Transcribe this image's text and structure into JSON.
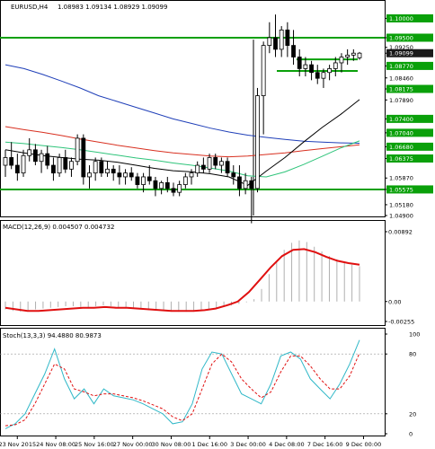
{
  "header": {
    "symbol": "EURUSD,H4",
    "ohlc": "1.08983 1.09134 1.08929 1.09099"
  },
  "colors": {
    "up_candle": "#ffffff",
    "down_candle": "#000000",
    "ma_slow": "#1f3fb8",
    "ma_mid": "#d83020",
    "ma_fast": "#2ec47a",
    "ma_black": "#000000",
    "level_lines": "#0aa00a",
    "macd_signal": "#e01010",
    "macd_hist": "#b0b0b0",
    "stoch_main": "#30b8c8",
    "stoch_signal": "#e01010",
    "price_box": "#0aa00a"
  },
  "chart_data": [
    {
      "type": "candlestick",
      "title": "EURUSD,H4",
      "ohlc_label": "1.08983 1.09134 1.08929 1.09099",
      "ylim": [
        1.049,
        1.1015
      ],
      "y_ticks": [
        {
          "v": 1.1,
          "label": "1.10000",
          "box": true
        },
        {
          "v": 1.095,
          "label": "1.09500",
          "box": true
        },
        {
          "v": 1.0925,
          "label": "1.09250",
          "box": false
        },
        {
          "v": 1.09099,
          "label": "1.09099",
          "box": true,
          "dark": true
        },
        {
          "v": 1.0877,
          "label": "1.08770",
          "box": true
        },
        {
          "v": 1.0846,
          "label": "1.08460",
          "box": false
        },
        {
          "v": 1.08175,
          "label": "1.08175",
          "box": true
        },
        {
          "v": 1.0789,
          "label": "1.07890",
          "box": false
        },
        {
          "v": 1.074,
          "label": "1.07400",
          "box": true
        },
        {
          "v": 1.0704,
          "label": "1.07040",
          "box": true
        },
        {
          "v": 1.0668,
          "label": "1.06680",
          "box": true
        },
        {
          "v": 1.06375,
          "label": "1.06375",
          "box": true
        },
        {
          "v": 1.0587,
          "label": "1.05870",
          "box": false
        },
        {
          "v": 1.05575,
          "label": "1.05575",
          "box": true
        },
        {
          "v": 1.0518,
          "label": "1.05180",
          "box": false
        },
        {
          "v": 1.049,
          "label": "1.04900",
          "box": false
        }
      ],
      "levels": [
        {
          "v": 1.095,
          "x0": 0,
          "x1": 428
        },
        {
          "v": 1.05575,
          "x0": 0,
          "x1": 428
        },
        {
          "v": 1.0894,
          "x0": 330,
          "x1": 398
        },
        {
          "v": 1.0864,
          "x0": 308,
          "x1": 398
        }
      ],
      "candles": [
        [
          1.062,
          1.066,
          1.059,
          1.064
        ],
        [
          1.064,
          1.068,
          1.061,
          1.062
        ],
        [
          1.062,
          1.065,
          1.058,
          1.06
        ],
        [
          1.06,
          1.066,
          1.059,
          1.0645
        ],
        [
          1.0645,
          1.069,
          1.063,
          1.066
        ],
        [
          1.066,
          1.0675,
          1.062,
          1.063
        ],
        [
          1.063,
          1.066,
          1.06,
          1.065
        ],
        [
          1.065,
          1.067,
          1.061,
          1.062
        ],
        [
          1.062,
          1.064,
          1.058,
          1.06
        ],
        [
          1.06,
          1.065,
          1.059,
          1.064
        ],
        [
          1.064,
          1.066,
          1.06,
          1.061
        ],
        [
          1.061,
          1.064,
          1.059,
          1.063
        ],
        [
          1.063,
          1.07,
          1.062,
          1.069
        ],
        [
          1.069,
          1.07,
          1.057,
          1.059
        ],
        [
          1.059,
          1.062,
          1.056,
          1.06
        ],
        [
          1.06,
          1.064,
          1.058,
          1.063
        ],
        [
          1.063,
          1.064,
          1.059,
          1.06
        ],
        [
          1.06,
          1.063,
          1.059,
          1.061
        ],
        [
          1.061,
          1.062,
          1.058,
          1.06
        ],
        [
          1.06,
          1.062,
          1.057,
          1.059
        ],
        [
          1.059,
          1.061,
          1.057,
          1.06
        ],
        [
          1.06,
          1.0615,
          1.058,
          1.059
        ],
        [
          1.059,
          1.06,
          1.056,
          1.057
        ],
        [
          1.057,
          1.06,
          1.055,
          1.059
        ],
        [
          1.059,
          1.062,
          1.057,
          1.058
        ],
        [
          1.058,
          1.059,
          1.054,
          1.056
        ],
        [
          1.056,
          1.058,
          1.0545,
          1.0575
        ],
        [
          1.0575,
          1.059,
          1.055,
          1.056
        ],
        [
          1.056,
          1.0575,
          1.054,
          1.055
        ],
        [
          1.055,
          1.058,
          1.054,
          1.057
        ],
        [
          1.057,
          1.06,
          1.056,
          1.059
        ],
        [
          1.059,
          1.061,
          1.057,
          1.06
        ],
        [
          1.06,
          1.063,
          1.059,
          1.062
        ],
        [
          1.062,
          1.064,
          1.06,
          1.061
        ],
        [
          1.061,
          1.065,
          1.06,
          1.064
        ],
        [
          1.064,
          1.065,
          1.061,
          1.062
        ],
        [
          1.062,
          1.064,
          1.06,
          1.063
        ],
        [
          1.063,
          1.064,
          1.059,
          1.06
        ],
        [
          1.06,
          1.062,
          1.057,
          1.059
        ],
        [
          1.059,
          1.062,
          1.054,
          1.056
        ],
        [
          1.056,
          1.06,
          1.0545,
          1.058
        ],
        [
          1.058,
          1.059,
          1.047,
          1.056
        ],
        [
          1.056,
          1.082,
          1.055,
          1.08
        ],
        [
          1.08,
          1.094,
          1.07,
          1.093
        ],
        [
          1.093,
          1.099,
          1.091,
          1.095
        ],
        [
          1.095,
          1.101,
          1.09,
          1.092
        ],
        [
          1.092,
          1.098,
          1.09,
          1.097
        ],
        [
          1.097,
          1.099,
          1.09,
          1.093
        ],
        [
          1.093,
          1.097,
          1.088,
          1.09
        ],
        [
          1.09,
          1.092,
          1.085,
          1.087
        ],
        [
          1.087,
          1.09,
          1.085,
          1.088
        ],
        [
          1.088,
          1.089,
          1.084,
          1.086
        ],
        [
          1.086,
          1.088,
          1.083,
          1.0845
        ],
        [
          1.0845,
          1.087,
          1.082,
          1.086
        ],
        [
          1.086,
          1.088,
          1.084,
          1.087
        ],
        [
          1.087,
          1.09,
          1.085,
          1.0885
        ],
        [
          1.0885,
          1.091,
          1.086,
          1.09
        ],
        [
          1.09,
          1.092,
          1.088,
          1.0905
        ],
        [
          1.0905,
          1.092,
          1.089,
          1.091
        ],
        [
          1.0898,
          1.0913,
          1.0893,
          1.091
        ]
      ],
      "ma_slow": [
        1.088,
        1.087,
        1.0855,
        1.0838,
        1.082,
        1.08,
        1.0785,
        1.077,
        1.0755,
        1.074,
        1.0728,
        1.0716,
        1.0706,
        1.0698,
        1.0692,
        1.0687,
        1.0682,
        1.068,
        1.0678,
        1.0677
      ],
      "ma_mid": [
        1.072,
        1.0712,
        1.0705,
        1.0697,
        1.0688,
        1.068,
        1.0672,
        1.0665,
        1.0658,
        1.0652,
        1.0648,
        1.0644,
        1.0642,
        1.0644,
        1.0648,
        1.0652,
        1.0658,
        1.0663,
        1.0668,
        1.0673
      ],
      "ma_fast": [
        1.068,
        1.0676,
        1.0671,
        1.0666,
        1.066,
        1.0653,
        1.0646,
        1.0639,
        1.0633,
        1.0626,
        1.062,
        1.0613,
        1.0605,
        1.0593,
        1.059,
        1.0603,
        1.0622,
        1.0643,
        1.0665,
        1.0683
      ],
      "ma_black": [
        1.066,
        1.0652,
        1.0645,
        1.064,
        1.0636,
        1.0633,
        1.0628,
        1.062,
        1.0612,
        1.0606,
        1.0603,
        1.0598,
        1.059,
        1.0568,
        1.0605,
        1.064,
        1.068,
        1.0718,
        1.0752,
        1.079
      ]
    },
    {
      "type": "line",
      "title": "MACD(12,26,9) 0.004507 0.004732",
      "ylim": [
        -0.00255,
        0.00892
      ],
      "y_ticks": [
        {
          "v": 0.00892,
          "label": "0.00892"
        },
        {
          "v": 0.0,
          "label": "0.00"
        },
        {
          "v": -0.00255,
          "label": "-0.00255"
        }
      ],
      "histogram": [
        -0.001,
        -0.0012,
        -0.0013,
        -0.0012,
        -0.001,
        -0.0009,
        -0.0008,
        -0.0007,
        -0.0006,
        -0.0006,
        -0.0007,
        -0.0008,
        -0.0006,
        -0.0005,
        -0.0006,
        -0.0007,
        -0.0008,
        -0.0009,
        -0.001,
        -0.0011,
        -0.0011,
        -0.0011,
        -0.0012,
        -0.0013,
        -0.0013,
        -0.0013,
        -0.0012,
        -0.001,
        -0.0008,
        -0.0006,
        -0.0005,
        -0.0003,
        -0.0001,
        0.0003,
        0.0016,
        0.0035,
        0.0052,
        0.0066,
        0.0075,
        0.0078,
        0.0076,
        0.007,
        0.0064,
        0.0058,
        0.0054,
        0.005,
        0.0047,
        0.0045
      ],
      "signal": [
        -0.0008,
        -0.001,
        -0.0012,
        -0.0012,
        -0.0011,
        -0.001,
        -0.0009,
        -0.0008,
        -0.0008,
        -0.0007,
        -0.0008,
        -0.0008,
        -0.0009,
        -0.001,
        -0.0011,
        -0.0012,
        -0.0012,
        -0.0012,
        -0.0011,
        -0.0009,
        -0.0005,
        0.0,
        0.0012,
        0.0028,
        0.0044,
        0.0058,
        0.0066,
        0.0067,
        0.0063,
        0.0057,
        0.0052,
        0.0049,
        0.0047
      ]
    },
    {
      "type": "line",
      "title": "Stoch(13,3,3) 94.4880 80.9873",
      "ylim": [
        0,
        100
      ],
      "y_ticks": [
        {
          "v": 100,
          "label": "100"
        },
        {
          "v": 80,
          "label": "80"
        },
        {
          "v": 20,
          "label": "20"
        },
        {
          "v": 0,
          "label": "0"
        }
      ],
      "main": [
        5,
        10,
        20,
        40,
        60,
        85,
        55,
        35,
        45,
        30,
        45,
        38,
        36,
        34,
        30,
        25,
        20,
        10,
        12,
        30,
        65,
        82,
        80,
        60,
        40,
        35,
        30,
        50,
        78,
        82,
        75,
        55,
        45,
        35,
        50,
        70,
        94
      ],
      "signal": [
        8,
        9,
        14,
        30,
        50,
        70,
        65,
        45,
        42,
        38,
        40,
        40,
        38,
        36,
        33,
        29,
        25,
        17,
        13,
        20,
        45,
        70,
        80,
        72,
        55,
        45,
        36,
        42,
        62,
        78,
        78,
        68,
        55,
        45,
        45,
        58,
        81
      ]
    }
  ],
  "x_axis": {
    "labels": [
      {
        "label": "23 Nov 2015",
        "pos": 0.045
      },
      {
        "label": "24 Nov 08:00",
        "pos": 0.145
      },
      {
        "label": "25 Nov 16:00",
        "pos": 0.245
      },
      {
        "label": "27 Nov 00:00",
        "pos": 0.345
      },
      {
        "label": "30 Nov 08:00",
        "pos": 0.445
      },
      {
        "label": "1 Dec 16:00",
        "pos": 0.545
      },
      {
        "label": "3 Dec 00:00",
        "pos": 0.645
      },
      {
        "label": "4 Dec 08:00",
        "pos": 0.745
      },
      {
        "label": "7 Dec 16:00",
        "pos": 0.845
      },
      {
        "label": "9 Dec 00:00",
        "pos": 0.945
      }
    ]
  }
}
